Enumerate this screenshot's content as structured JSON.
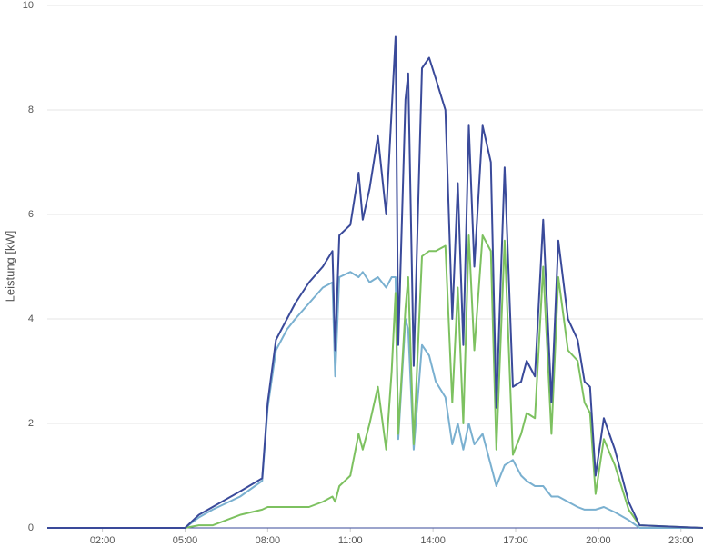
{
  "chart_data": {
    "type": "line",
    "y_label": "Leistung [kW]",
    "x": [
      0,
      5,
      5.5,
      6,
      7,
      7.8,
      8,
      8.3,
      8.7,
      9,
      9.5,
      10,
      10.35,
      10.45,
      10.6,
      11,
      11.3,
      11.45,
      11.7,
      12,
      12.3,
      12.5,
      12.64,
      12.74,
      13.0,
      13.1,
      13.3,
      13.6,
      13.86,
      14.1,
      14.45,
      14.7,
      14.9,
      15.1,
      15.3,
      15.5,
      15.8,
      16.1,
      16.3,
      16.6,
      16.9,
      17.2,
      17.4,
      17.7,
      18.0,
      18.3,
      18.55,
      18.9,
      19.25,
      19.5,
      19.7,
      19.9,
      20.2,
      20.6,
      21.1,
      21.5,
      23.8
    ],
    "series": [
      {
        "color": "#7ab0d0",
        "values": [
          0,
          0,
          0.2,
          0.35,
          0.6,
          0.9,
          2.3,
          3.4,
          3.8,
          4.0,
          4.3,
          4.6,
          4.7,
          2.9,
          4.8,
          4.9,
          4.8,
          4.9,
          4.7,
          4.8,
          4.6,
          4.8,
          4.8,
          1.7,
          4.0,
          3.8,
          1.5,
          3.5,
          3.3,
          2.8,
          2.5,
          1.6,
          2.0,
          1.5,
          2.0,
          1.6,
          1.8,
          1.2,
          0.8,
          1.2,
          1.3,
          1.0,
          0.9,
          0.8,
          0.8,
          0.6,
          0.6,
          0.5,
          0.4,
          0.35,
          0.35,
          0.35,
          0.4,
          0.3,
          0.15,
          0,
          0
        ]
      },
      {
        "color": "#7dc160",
        "values": [
          0,
          0,
          0.05,
          0.05,
          0.25,
          0.35,
          0.4,
          0.4,
          0.4,
          0.4,
          0.4,
          0.5,
          0.6,
          0.5,
          0.8,
          1.0,
          1.8,
          1.5,
          2.0,
          2.7,
          1.5,
          3.0,
          4.5,
          1.8,
          4.2,
          4.8,
          1.6,
          5.2,
          5.3,
          5.3,
          5.4,
          2.4,
          4.6,
          2.0,
          5.6,
          3.4,
          5.6,
          5.3,
          1.5,
          5.5,
          1.4,
          1.8,
          2.2,
          2.1,
          5.0,
          1.8,
          4.8,
          3.4,
          3.2,
          2.4,
          2.2,
          0.65,
          1.7,
          1.2,
          0.35,
          0.05,
          0
        ]
      },
      {
        "color": "#3a4a9a",
        "values": [
          0,
          0,
          0.25,
          0.4,
          0.7,
          0.95,
          2.4,
          3.6,
          4.0,
          4.3,
          4.7,
          5.0,
          5.3,
          3.4,
          5.6,
          5.8,
          6.8,
          5.9,
          6.5,
          7.5,
          6.0,
          8.0,
          9.4,
          3.5,
          8.2,
          8.7,
          3.1,
          8.8,
          9.0,
          8.6,
          8.0,
          4.0,
          6.6,
          3.5,
          7.7,
          5.0,
          7.7,
          7.0,
          2.3,
          6.9,
          2.7,
          2.8,
          3.2,
          2.9,
          5.9,
          2.4,
          5.5,
          4.0,
          3.6,
          2.8,
          2.7,
          1.0,
          2.1,
          1.5,
          0.5,
          0.05,
          0
        ]
      }
    ],
    "xlim": [
      0,
      23.8
    ],
    "xticks": [
      {
        "value": 2,
        "label": "02:00"
      },
      {
        "value": 5,
        "label": "05:00"
      },
      {
        "value": 8,
        "label": "08:00"
      },
      {
        "value": 11,
        "label": "11:00"
      },
      {
        "value": 14,
        "label": "14:00"
      },
      {
        "value": 17,
        "label": "17:00"
      },
      {
        "value": 20,
        "label": "20:00"
      },
      {
        "value": 23,
        "label": "23:00"
      }
    ],
    "ylim": [
      0,
      10
    ],
    "yticks": [
      0,
      2,
      4,
      6,
      8,
      10
    ],
    "grid": true
  }
}
